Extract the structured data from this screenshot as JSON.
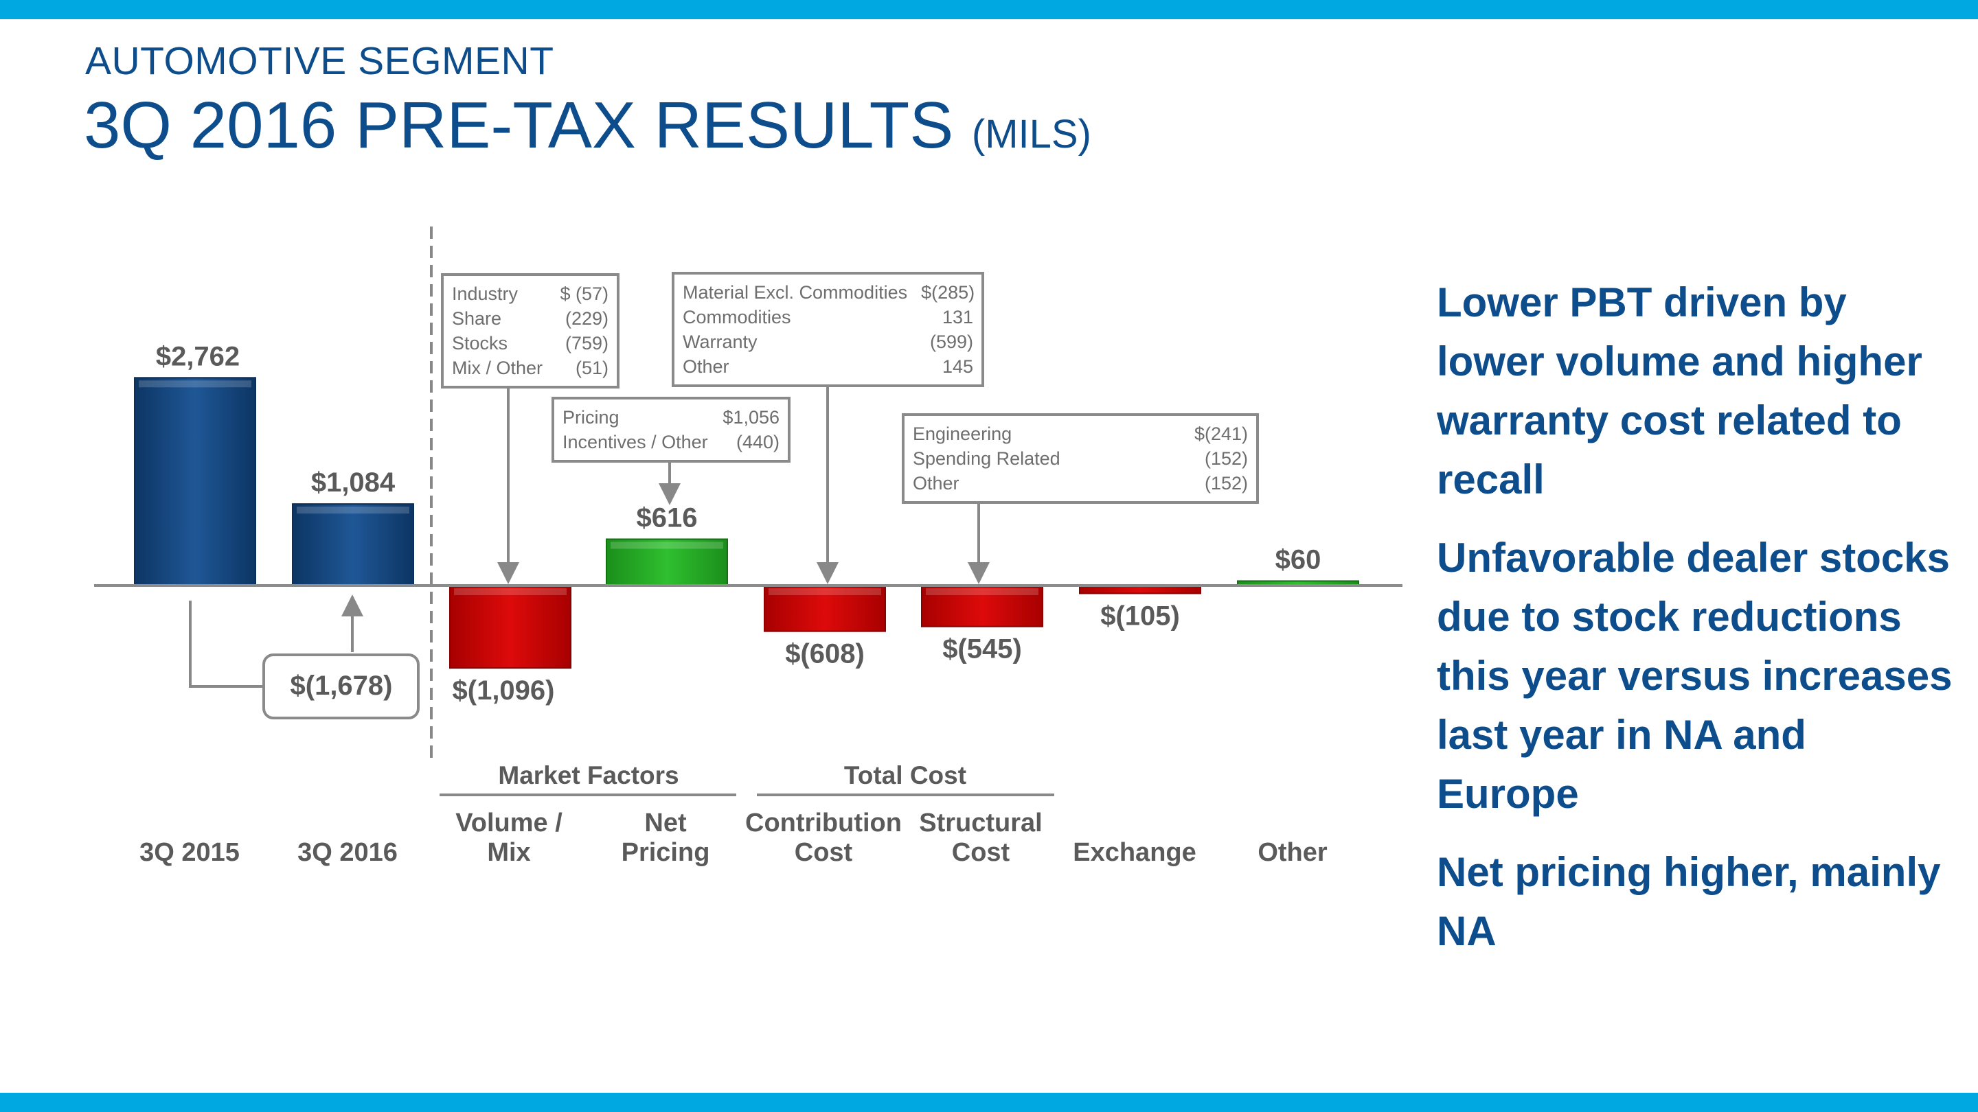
{
  "header": {
    "segment": "AUTOMOTIVE SEGMENT",
    "title": "3Q 2016 PRE-TAX RESULTS",
    "unit": "(MILS)"
  },
  "colors": {
    "brand_blue": "#0d4d8c",
    "band": "#00a8e1",
    "bar_blue": "#1a4c86",
    "bar_red": "#cc0000",
    "bar_green": "#22aa22"
  },
  "chart_data": {
    "type": "waterfall",
    "title": "3Q 2016 PRE-TAX RESULTS (MILS)",
    "ylim": [
      -1096,
      2762
    ],
    "bars": [
      {
        "key": "q2015",
        "category": "3Q 2015",
        "start": 0,
        "end": 2762,
        "label": "$2,762",
        "kind": "total"
      },
      {
        "key": "q2016",
        "category": "3Q 2016",
        "start": 0,
        "end": 1084,
        "label": "$1,084",
        "kind": "total"
      },
      {
        "key": "volmix",
        "category": "Volume / Mix",
        "start": 0,
        "end": -1096,
        "label": "$(1,096)",
        "kind": "negative"
      },
      {
        "key": "pricing",
        "category": "Net Pricing",
        "start": 0,
        "end": 616,
        "label": "$616",
        "kind": "positive"
      },
      {
        "key": "contrib",
        "category": "Contribution Cost",
        "start": 0,
        "end": -608,
        "label": "$(608)",
        "kind": "negative"
      },
      {
        "key": "struct",
        "category": "Structural Cost",
        "start": 0,
        "end": -545,
        "label": "$(545)",
        "kind": "negative"
      },
      {
        "key": "exchange",
        "category": "Exchange",
        "start": 0,
        "end": -105,
        "label": "$(105)",
        "kind": "negative"
      },
      {
        "key": "other",
        "category": "Other",
        "start": 0,
        "end": 60,
        "label": "$60",
        "kind": "positive"
      }
    ],
    "category_lines": [
      [
        "3Q 2015"
      ],
      [
        "3Q 2016"
      ],
      [
        "Volume /",
        "Mix"
      ],
      [
        "Net",
        "Pricing"
      ],
      [
        "Contribution",
        "Cost"
      ],
      [
        "Structural",
        "Cost"
      ],
      [
        "Exchange"
      ],
      [
        "Other"
      ]
    ],
    "group_labels": [
      {
        "label": "Market Factors",
        "covers": [
          "Volume / Mix",
          "Net Pricing"
        ]
      },
      {
        "label": "Total Cost",
        "covers": [
          "Contribution Cost",
          "Structural Cost"
        ]
      }
    ],
    "change_label": "$(1,678)"
  },
  "callouts": {
    "market": [
      {
        "name": "Industry",
        "value": "$  (57)"
      },
      {
        "name": "Share",
        "value": "(229)"
      },
      {
        "name": "Stocks",
        "value": "(759)"
      },
      {
        "name": "Mix / Other",
        "value": "(51)"
      }
    ],
    "pricing": [
      {
        "name": "Pricing",
        "value": "$1,056"
      },
      {
        "name": "Incentives / Other",
        "value": "(440)"
      }
    ],
    "contribution": [
      {
        "name": "Material Excl. Commodities",
        "value": "$(285)"
      },
      {
        "name": "Commodities",
        "value": "131"
      },
      {
        "name": "Warranty",
        "value": "(599)"
      },
      {
        "name": "Other",
        "value": "145"
      }
    ],
    "structural": [
      {
        "name": "Engineering",
        "value": "$(241)"
      },
      {
        "name": "Spending Related",
        "value": "(152)"
      },
      {
        "name": "Other",
        "value": "(152)"
      }
    ]
  },
  "bullets": [
    "Lower PBT driven by lower volume and higher warranty cost related to recall",
    "Unfavorable dealer stocks due to stock reductions this year versus increases last year in NA and Europe",
    "Net pricing higher, mainly NA"
  ]
}
